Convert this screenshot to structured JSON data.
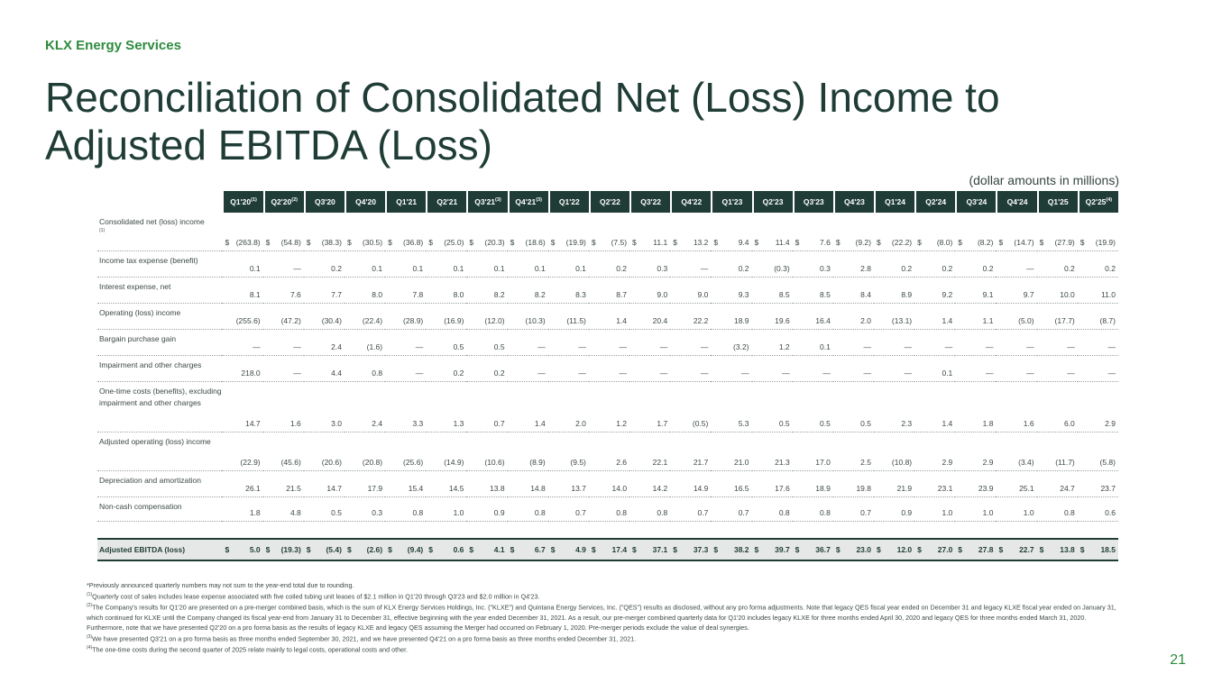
{
  "header": {
    "brand": "KLX Energy Services",
    "title": "Reconciliation of Consolidated Net (Loss) Income to Adjusted EBITDA (Loss)",
    "units": "(dollar amounts in millions)"
  },
  "table": {
    "columns": [
      {
        "label": "Q1'20",
        "note": "(1)"
      },
      {
        "label": "Q2'20",
        "note": "(2)"
      },
      {
        "label": "Q3'20"
      },
      {
        "label": "Q4'20"
      },
      {
        "label": "Q1'21"
      },
      {
        "label": "Q2'21"
      },
      {
        "label": "Q3'21",
        "note": "(3)"
      },
      {
        "label": "Q4'21",
        "note": "(3)"
      },
      {
        "label": "Q1'22"
      },
      {
        "label": "Q2'22"
      },
      {
        "label": "Q3'22"
      },
      {
        "label": "Q4'22"
      },
      {
        "label": "Q1'23"
      },
      {
        "label": "Q2'23"
      },
      {
        "label": "Q3'23"
      },
      {
        "label": "Q4'23"
      },
      {
        "label": "Q1'24"
      },
      {
        "label": "Q2'24"
      },
      {
        "label": "Q3'24"
      },
      {
        "label": "Q4'24"
      },
      {
        "label": "Q1'25"
      },
      {
        "label": "Q2'25",
        "note": "(4)"
      }
    ],
    "rows": [
      {
        "label": "Consolidated net (loss) income",
        "note": "(1)",
        "currency": "$",
        "values": [
          "(263.8)",
          "(54.8)",
          "(38.3)",
          "(30.5)",
          "(36.8)",
          "(25.0)",
          "(20.3)",
          "(18.6)",
          "(19.9)",
          "(7.5)",
          "11.1",
          "13.2",
          "9.4",
          "11.4",
          "7.6",
          "(9.2)",
          "(22.2)",
          "(8.0)",
          "(8.2)",
          "(14.7)",
          "(27.9)",
          "(19.9)"
        ]
      },
      {
        "label": "Income tax expense (benefit)",
        "values": [
          "0.1",
          "—",
          "0.2",
          "0.1",
          "0.1",
          "0.1",
          "0.1",
          "0.1",
          "0.1",
          "0.2",
          "0.3",
          "—",
          "0.2",
          "(0.3)",
          "0.3",
          "2.8",
          "0.2",
          "0.2",
          "0.2",
          "—",
          "0.2",
          "0.2"
        ]
      },
      {
        "label": "Interest expense, net",
        "values": [
          "8.1",
          "7.6",
          "7.7",
          "8.0",
          "7.8",
          "8.0",
          "8.2",
          "8.2",
          "8.3",
          "8.7",
          "9.0",
          "9.0",
          "9.3",
          "8.5",
          "8.5",
          "8.4",
          "8.9",
          "9.2",
          "9.1",
          "9.7",
          "10.0",
          "11.0"
        ]
      },
      {
        "label": "Operating (loss) income",
        "values": [
          "(255.6)",
          "(47.2)",
          "(30.4)",
          "(22.4)",
          "(28.9)",
          "(16.9)",
          "(12.0)",
          "(10.3)",
          "(11.5)",
          "1.4",
          "20.4",
          "22.2",
          "18.9",
          "19.6",
          "16.4",
          "2.0",
          "(13.1)",
          "1.4",
          "1.1",
          "(5.0)",
          "(17.7)",
          "(8.7)"
        ]
      },
      {
        "label": "Bargain purchase gain",
        "values": [
          "—",
          "—",
          "2.4",
          "(1.6)",
          "—",
          "0.5",
          "0.5",
          "—",
          "—",
          "—",
          "—",
          "—",
          "(3.2)",
          "1.2",
          "0.1",
          "—",
          "—",
          "—",
          "—",
          "—",
          "—",
          "—"
        ]
      },
      {
        "label": "Impairment and other charges",
        "values": [
          "218.0",
          "—",
          "4.4",
          "0.8",
          "—",
          "0.2",
          "0.2",
          "—",
          "—",
          "—",
          "—",
          "—",
          "—",
          "—",
          "—",
          "—",
          "—",
          "0.1",
          "—",
          "—",
          "—",
          "—"
        ]
      },
      {
        "label": "One-time costs (benefits), excluding impairment and other charges",
        "values": [
          "14.7",
          "1.6",
          "3.0",
          "2.4",
          "3.3",
          "1.3",
          "0.7",
          "1.4",
          "2.0",
          "1.2",
          "1.7",
          "(0.5)",
          "5.3",
          "0.5",
          "0.5",
          "0.5",
          "2.3",
          "1.4",
          "1.8",
          "1.6",
          "6.0",
          "2.9"
        ]
      },
      {
        "label": "Adjusted operating (loss) income",
        "values": [
          "(22.9)",
          "(45.6)",
          "(20.6)",
          "(20.8)",
          "(25.6)",
          "(14.9)",
          "(10.6)",
          "(8.9)",
          "(9.5)",
          "2.6",
          "22.1",
          "21.7",
          "21.0",
          "21.3",
          "17.0",
          "2.5",
          "(10.8)",
          "2.9",
          "2.9",
          "(3.4)",
          "(11.7)",
          "(5.8)"
        ]
      },
      {
        "label": "Depreciation and amortization",
        "values": [
          "26.1",
          "21.5",
          "14.7",
          "17.9",
          "15.4",
          "14.5",
          "13.8",
          "14.8",
          "13.7",
          "14.0",
          "14.2",
          "14.9",
          "16.5",
          "17.6",
          "18.9",
          "19.8",
          "21.9",
          "23.1",
          "23.9",
          "25.1",
          "24.7",
          "23.7"
        ]
      },
      {
        "label": "Non-cash compensation",
        "values": [
          "1.8",
          "4.8",
          "0.5",
          "0.3",
          "0.8",
          "1.0",
          "0.9",
          "0.8",
          "0.7",
          "0.8",
          "0.8",
          "0.7",
          "0.7",
          "0.8",
          "0.8",
          "0.7",
          "0.9",
          "1.0",
          "1.0",
          "1.0",
          "0.8",
          "0.6"
        ]
      }
    ],
    "total": {
      "label": "Adjusted EBITDA (loss)",
      "currency": "$",
      "values": [
        "5.0",
        "(19.3)",
        "(5.4)",
        "(2.6)",
        "(9.4)",
        "0.6",
        "4.1",
        "6.7",
        "4.9",
        "17.4",
        "37.1",
        "37.3",
        "38.2",
        "39.7",
        "36.7",
        "23.0",
        "12.0",
        "27.0",
        "27.8",
        "22.7",
        "13.8",
        "18.5"
      ]
    }
  },
  "footnotes": [
    {
      "text": "*Previously announced quarterly numbers may not sum to the year-end total due to rounding."
    },
    {
      "marker": "(1)",
      "text": "Quarterly cost of sales includes lease expense associated with five coiled tubing unit leases of $2.1 million in Q1'20 through Q3'23 and $2.0 million in Q4'23."
    },
    {
      "marker": "(2)",
      "text": "The Company's results for Q1'20 are presented on a pre-merger combined basis, which is the sum of KLX Energy Services Holdings, Inc. (\"KLXE\") and Quintana Energy Services, Inc. (\"QES\") results as disclosed, without any pro forma adjustments. Note that legacy QES fiscal year ended on December 31 and legacy KLXE fiscal year ended on January 31, which continued for KLXE until the Company changed its fiscal year-end from January 31 to December 31, effective beginning with the year ended December 31, 2021. As a result, our pre-merger combined quarterly data for Q1'20 includes legacy KLXE for three months ended April 30, 2020 and legacy QES for three months ended March 31, 2020. Furthermore, note that we have presented Q2'20 on a pro forma basis as the results of legacy KLXE and legacy QES assuming the Merger had occurred on February 1, 2020. Pre-merger periods exclude the value of deal synergies."
    },
    {
      "marker": "(3)",
      "text": "We have presented Q3'21 on a pro forma basis as three months ended September 30, 2021, and we have presented Q4'21 on a pro forma basis as three months ended December 31, 2021."
    },
    {
      "marker": "(4)",
      "text": "The one-time costs during the second quarter of 2025 relate mainly to legal costs, operational costs and other."
    }
  ],
  "page_number": "21"
}
